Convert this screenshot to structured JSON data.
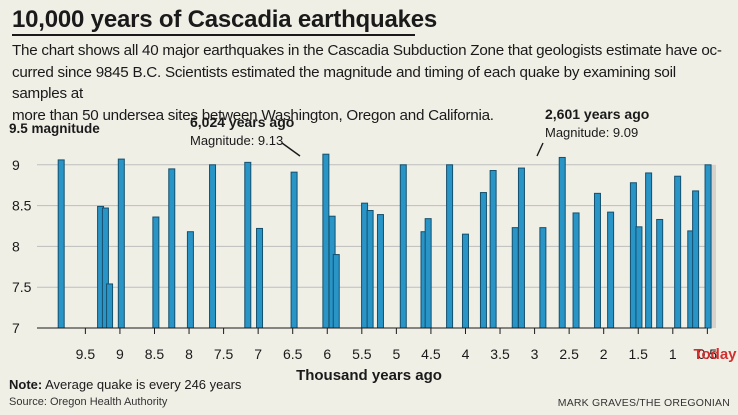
{
  "title": "10,000 years of Cascadia earthquakes",
  "description_lines": [
    "The chart shows all 40 major earthquakes in the Cascadia Subduction Zone that geologists estimate have oc-",
    "curred since 9845 B.C. Scientists estimated the magnitude and timing of each quake by examining soil samples at",
    "more than 50 undersea sites between Washington, Oregon and California."
  ],
  "footer": {
    "note_label": "Note:",
    "note_text": " Average quake is every 246 years",
    "source": "Source: Oregon Health Authority",
    "credit": "MARK GRAVES/THE OREGONIAN"
  },
  "colors": {
    "bar_fill": "#2994c6",
    "bar_stroke": "#15506e",
    "today_bar": "#d8d2cc",
    "today_label": "#d32f2f",
    "grid": "#bdbdbd",
    "background": "#f0efe6"
  },
  "chart_data": {
    "type": "bar",
    "title": "10,000 years of Cascadia earthquakes",
    "xlabel": "Thousand years ago",
    "ylabel": "9.5 magnitude",
    "xlim": [
      10.2,
      0.1
    ],
    "ylim": [
      7,
      9.5
    ],
    "y_ticks": [
      7,
      7.5,
      8,
      8.5,
      9
    ],
    "y_tick_labels": [
      "7",
      "7.5",
      "8",
      "8.5",
      "9"
    ],
    "x_ticks": [
      9.5,
      9,
      8.5,
      8,
      7.5,
      7,
      6.5,
      6,
      5.5,
      5,
      4.5,
      4,
      3.5,
      3,
      2.5,
      2,
      1.5,
      1,
      0.5
    ],
    "x_tick_labels": [
      "9.5",
      "9",
      "8.5",
      "8",
      "7.5",
      "7",
      "6.5",
      "6",
      "5.5",
      "5",
      "4.5",
      "4",
      "3.5",
      "3",
      "2.5",
      "2",
      "1.5",
      "1",
      "0.5"
    ],
    "today_label": "Today",
    "grid": true,
    "quakes": [
      {
        "years_ago_thousand": 9.85,
        "magnitude": 9.06
      },
      {
        "years_ago_thousand": 9.28,
        "magnitude": 8.49
      },
      {
        "years_ago_thousand": 9.21,
        "magnitude": 8.47
      },
      {
        "years_ago_thousand": 9.15,
        "magnitude": 7.54
      },
      {
        "years_ago_thousand": 8.98,
        "magnitude": 9.07
      },
      {
        "years_ago_thousand": 8.48,
        "magnitude": 8.36
      },
      {
        "years_ago_thousand": 8.25,
        "magnitude": 8.95
      },
      {
        "years_ago_thousand": 7.98,
        "magnitude": 8.18
      },
      {
        "years_ago_thousand": 7.66,
        "magnitude": 9.0
      },
      {
        "years_ago_thousand": 7.15,
        "magnitude": 9.03
      },
      {
        "years_ago_thousand": 6.98,
        "magnitude": 8.22
      },
      {
        "years_ago_thousand": 6.48,
        "magnitude": 8.91
      },
      {
        "years_ago_thousand": 6.02,
        "magnitude": 9.13
      },
      {
        "years_ago_thousand": 5.93,
        "magnitude": 8.37
      },
      {
        "years_ago_thousand": 5.87,
        "magnitude": 7.9
      },
      {
        "years_ago_thousand": 5.46,
        "magnitude": 8.53
      },
      {
        "years_ago_thousand": 5.38,
        "magnitude": 8.44
      },
      {
        "years_ago_thousand": 5.23,
        "magnitude": 8.39
      },
      {
        "years_ago_thousand": 4.9,
        "magnitude": 9.0
      },
      {
        "years_ago_thousand": 4.6,
        "magnitude": 8.18
      },
      {
        "years_ago_thousand": 4.54,
        "magnitude": 8.34
      },
      {
        "years_ago_thousand": 4.23,
        "magnitude": 9.0
      },
      {
        "years_ago_thousand": 4.0,
        "magnitude": 8.15
      },
      {
        "years_ago_thousand": 3.74,
        "magnitude": 8.66
      },
      {
        "years_ago_thousand": 3.6,
        "magnitude": 8.93
      },
      {
        "years_ago_thousand": 3.28,
        "magnitude": 8.23
      },
      {
        "years_ago_thousand": 3.19,
        "magnitude": 8.96
      },
      {
        "years_ago_thousand": 2.88,
        "magnitude": 8.23
      },
      {
        "years_ago_thousand": 2.6,
        "magnitude": 9.09
      },
      {
        "years_ago_thousand": 2.4,
        "magnitude": 8.41
      },
      {
        "years_ago_thousand": 2.09,
        "magnitude": 8.65
      },
      {
        "years_ago_thousand": 1.9,
        "magnitude": 8.42
      },
      {
        "years_ago_thousand": 1.57,
        "magnitude": 8.78
      },
      {
        "years_ago_thousand": 1.49,
        "magnitude": 8.24
      },
      {
        "years_ago_thousand": 1.35,
        "magnitude": 8.9
      },
      {
        "years_ago_thousand": 1.19,
        "magnitude": 8.33
      },
      {
        "years_ago_thousand": 0.93,
        "magnitude": 8.86
      },
      {
        "years_ago_thousand": 0.74,
        "magnitude": 8.19
      },
      {
        "years_ago_thousand": 0.67,
        "magnitude": 8.68
      },
      {
        "years_ago_thousand": 0.49,
        "magnitude": 9.0
      }
    ],
    "annotations": [
      {
        "label": "6,024 years ago",
        "sublabel": "Magnitude: 9.13",
        "years_ago_thousand": 6.024,
        "magnitude": 9.13
      },
      {
        "label": "2,601 years ago",
        "sublabel": "Magnitude: 9.09",
        "years_ago_thousand": 2.601,
        "magnitude": 9.09
      }
    ]
  }
}
